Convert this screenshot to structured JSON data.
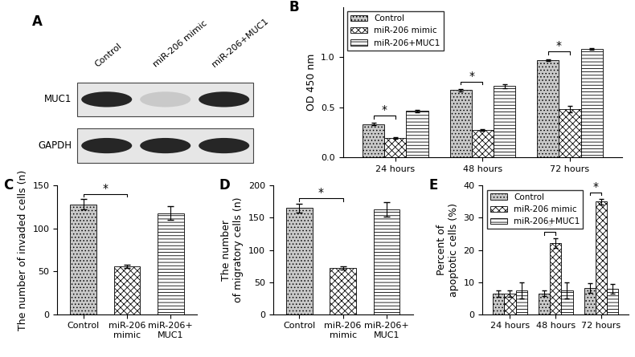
{
  "blot": {
    "label": "A",
    "lanes": [
      "Control",
      "miR-206 mimic",
      "miR-206+MUC1"
    ],
    "rows": [
      {
        "label": "MUC1",
        "intensity": [
          1.0,
          0.25,
          1.0
        ]
      },
      {
        "label": "GAPDH",
        "intensity": [
          1.0,
          1.0,
          1.0
        ]
      }
    ]
  },
  "chart_data": [
    {
      "label": "B",
      "type": "bar",
      "ylabel": "OD 450 nm",
      "categories": [
        "24 hours",
        "48 hours",
        "72 hours"
      ],
      "series": [
        {
          "name": "Control",
          "color": "#c8c8c8",
          "values": [
            0.33,
            0.67,
            0.97
          ],
          "errors": [
            0.01,
            0.01,
            0.01
          ]
        },
        {
          "name": "miR-206 mimic",
          "color": "#ffffff",
          "values": [
            0.19,
            0.27,
            0.48
          ],
          "errors": [
            0.01,
            0.01,
            0.03
          ]
        },
        {
          "name": "miR-206+MUC1",
          "color": "#ffffff",
          "values": [
            0.46,
            0.71,
            1.08
          ],
          "errors": [
            0.01,
            0.02,
            0.01
          ]
        }
      ],
      "ylim": [
        0,
        1.5
      ],
      "yticks": [
        {
          "value": 0,
          "label": "0.0"
        },
        0.5,
        {
          "value": 1,
          "label": "1.0"
        }
      ],
      "legend": "upper left",
      "significance": [
        {
          "category": "24 hours",
          "series": [
            "Control",
            "miR-206 mimic"
          ],
          "label": "*"
        },
        {
          "category": "48 hours",
          "series": [
            "Control",
            "miR-206 mimic"
          ],
          "label": "*"
        },
        {
          "category": "72 hours",
          "series": [
            "Control",
            "miR-206 mimic"
          ],
          "label": "*"
        }
      ]
    },
    {
      "label": "C",
      "type": "bar",
      "ylabel": "The number of invaded cells (n)",
      "categories": [
        "Control",
        "miR-206\nmimic",
        "miR-206+\nMUC1"
      ],
      "values": [
        128,
        56,
        118
      ],
      "errors": [
        6,
        2,
        8
      ],
      "colors": [
        "#c8c8c8",
        "#ffffff",
        "#ffffff"
      ],
      "ylim": [
        0,
        150
      ],
      "yticks": [
        0,
        50,
        100,
        150
      ],
      "significance": [
        {
          "categories": [
            "Control",
            "miR-206\nmimic"
          ],
          "label": "*"
        }
      ]
    },
    {
      "label": "D",
      "type": "bar",
      "ylabel": "The number\nof migratory cells (n)",
      "categories": [
        "Control",
        "miR-206\nmimic",
        "miR-206+\nMUC1"
      ],
      "values": [
        165,
        72,
        163
      ],
      "errors": [
        7,
        3,
        11
      ],
      "colors": [
        "#c8c8c8",
        "#ffffff",
        "#ffffff"
      ],
      "ylim": [
        0,
        200
      ],
      "yticks": [
        0,
        50,
        100,
        150,
        200
      ],
      "significance": [
        {
          "categories": [
            "Control",
            "miR-206\nmimic"
          ],
          "label": "*"
        }
      ]
    },
    {
      "label": "E",
      "type": "bar",
      "ylabel": "Percent of\napoptotic cells (%)",
      "categories": [
        "24 hours",
        "48 hours",
        "72 hours"
      ],
      "series": [
        {
          "name": "Control",
          "color": "#c8c8c8",
          "values": [
            6.5,
            6.5,
            8.2
          ],
          "errors": [
            1.0,
            0.8,
            1.5
          ]
        },
        {
          "name": "miR-206 mimic",
          "color": "#ffffff",
          "values": [
            6.5,
            22,
            35
          ],
          "errors": [
            1.0,
            1.5,
            0.8
          ]
        },
        {
          "name": "miR-206+MUC1",
          "color": "#ffffff",
          "values": [
            7.5,
            7.5,
            7.8
          ],
          "errors": [
            2.5,
            2.5,
            1.5
          ]
        }
      ],
      "ylim": [
        0,
        40
      ],
      "yticks": [
        0,
        10,
        20,
        30,
        40
      ],
      "legend": "upper left",
      "significance": [
        {
          "category": "48 hours",
          "series": [
            "Control",
            "miR-206 mimic"
          ],
          "label": "*"
        },
        {
          "category": "72 hours",
          "series": [
            "Control",
            "miR-206 mimic"
          ],
          "label": "*"
        }
      ]
    }
  ]
}
